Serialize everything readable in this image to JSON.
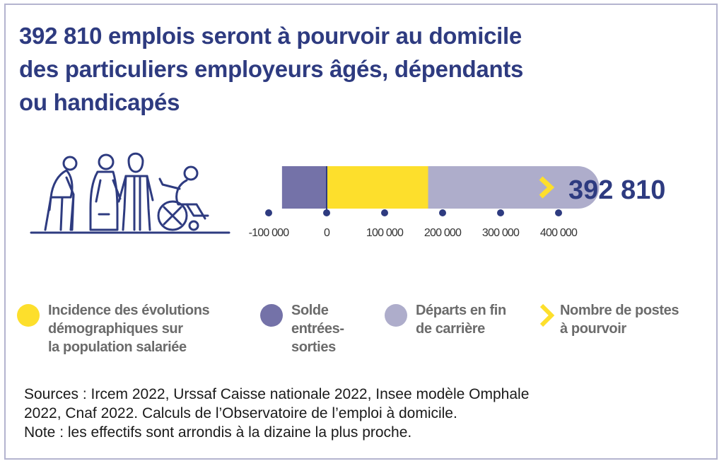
{
  "title": {
    "line1": "392 810 emplois seront à pourvoir au domicile",
    "line2": "des particuliers employeurs âgés, dépendants",
    "line3": "ou handicapés"
  },
  "colors": {
    "title": "#2e3b80",
    "solde": "#7472a8",
    "incidence": "#fddf2c",
    "departs": "#aeadcb",
    "total_chevron": "#fddf2c",
    "axis_dot": "#2e3b80"
  },
  "chart_data": {
    "type": "bar",
    "orientation": "horizontal-stacked",
    "segments": [
      {
        "name": "Solde entrées-sorties",
        "start": -77000,
        "end": 0,
        "color": "#7472a8"
      },
      {
        "name": "Incidence des évolutions démographiques sur la population salariée",
        "start": 0,
        "end": 175000,
        "color": "#fddf2c"
      },
      {
        "name": "Départs en fin de carrière",
        "start": 175000,
        "end": 470000,
        "color": "#aeadcb"
      }
    ],
    "total": 392810,
    "total_label": "392 810",
    "xlim": [
      -100000,
      400000
    ],
    "ticks": [
      -100000,
      0,
      100000,
      200000,
      300000,
      400000
    ],
    "tick_labels": [
      "-100 000",
      "0",
      "100 000",
      "200 000",
      "300 000",
      "400 000"
    ]
  },
  "legend": [
    {
      "lines": [
        "Incidence des évolutions",
        "démographiques sur",
        "la population salariée"
      ],
      "color": "#fddf2c",
      "marker": "dot"
    },
    {
      "lines": [
        "Solde",
        "entrées-",
        "sorties"
      ],
      "color": "#7472a8",
      "marker": "dot"
    },
    {
      "lines": [
        "Départs en fin",
        "de carrière"
      ],
      "color": "#aeadcb",
      "marker": "dot"
    },
    {
      "lines": [
        "Nombre de postes",
        "à pourvoir"
      ],
      "color": "#fddf2c",
      "marker": "chevron"
    }
  ],
  "source": {
    "line1": "Sources : Ircem 2022, Urssaf Caisse nationale 2022, Insee modèle Omphale",
    "line2": "2022, Cnaf 2022. Calculs de l’Observatoire de l’emploi à domicile.",
    "line3": "Note : les effectifs sont arrondis à la dizaine la plus proche."
  }
}
